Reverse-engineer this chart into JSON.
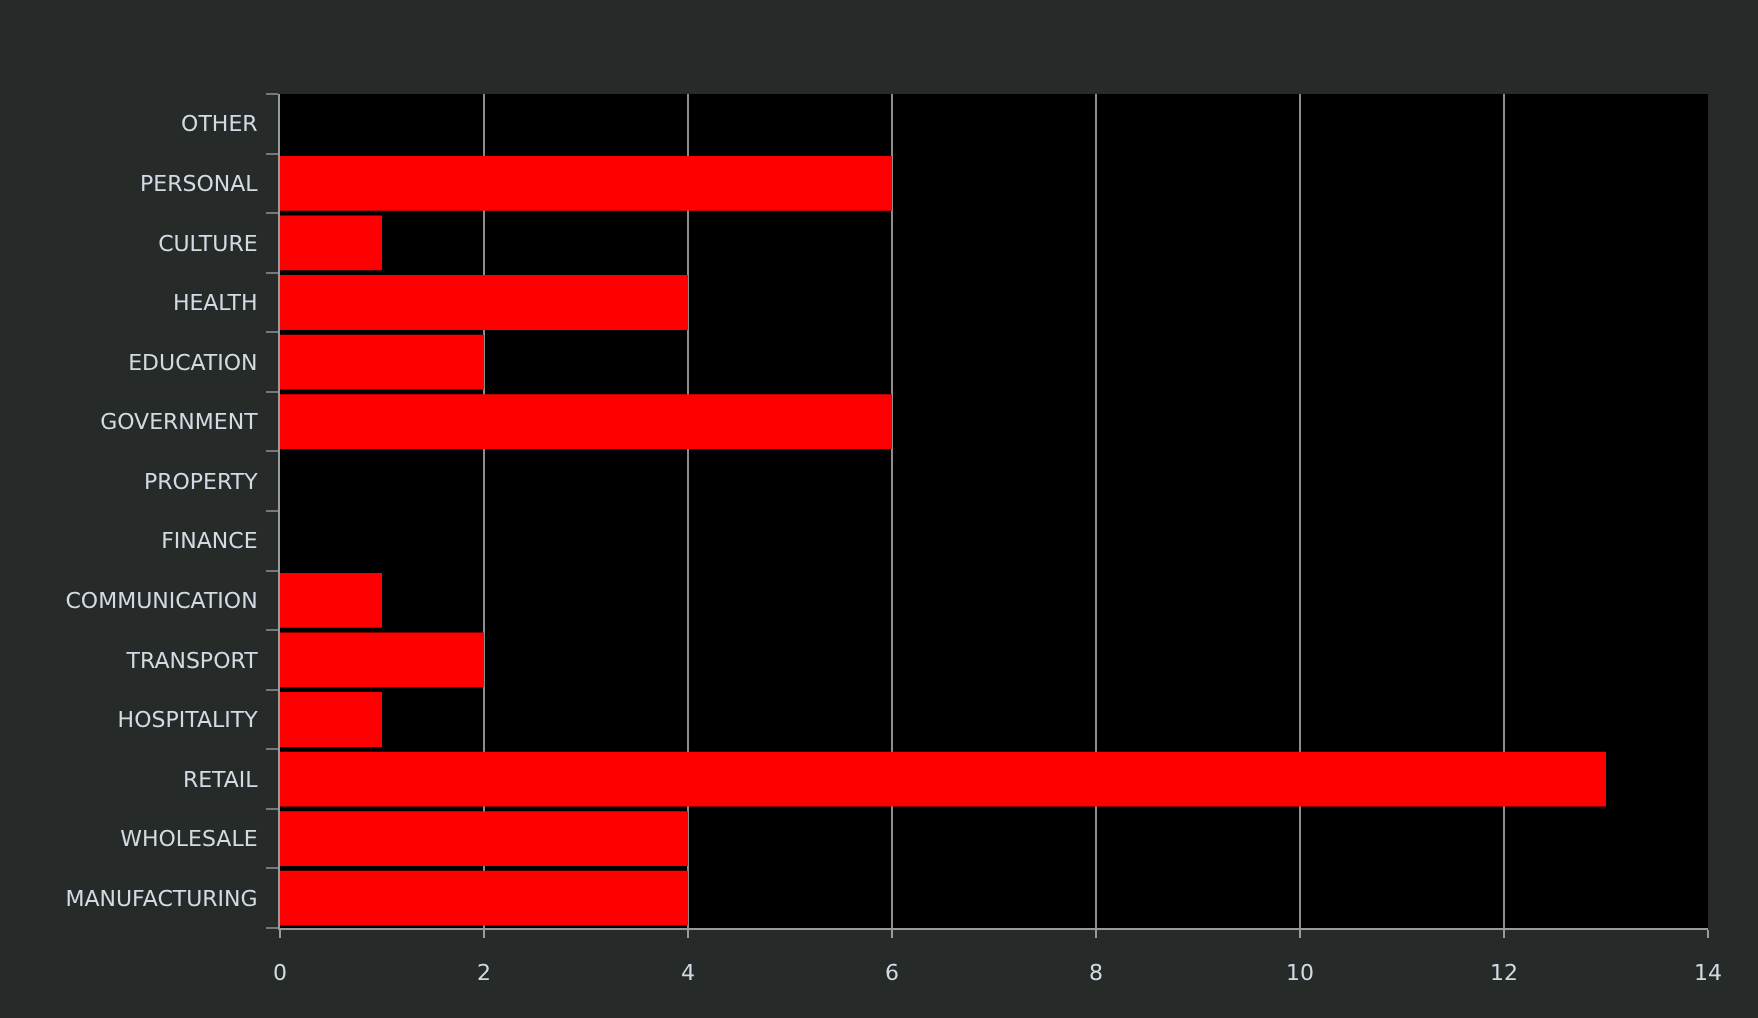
{
  "chart_data": {
    "type": "bar",
    "orientation": "horizontal",
    "categories": [
      "OTHER",
      "PERSONAL",
      "CULTURE",
      "HEALTH",
      "EDUCATION",
      "GOVERNMENT",
      "PROPERTY",
      "FINANCE",
      "COMMUNICATION",
      "TRANSPORT",
      "HOSPITALITY",
      "RETAIL",
      "WHOLESALE",
      "MANUFACTURING"
    ],
    "values": [
      0,
      6,
      1,
      4,
      2,
      6,
      0,
      0,
      1,
      2,
      1,
      13,
      4,
      4
    ],
    "color": "#ff0000",
    "xlim": [
      0,
      14
    ],
    "xticks": [
      0,
      2,
      4,
      6,
      8,
      10,
      12,
      14
    ],
    "grid": "x"
  }
}
